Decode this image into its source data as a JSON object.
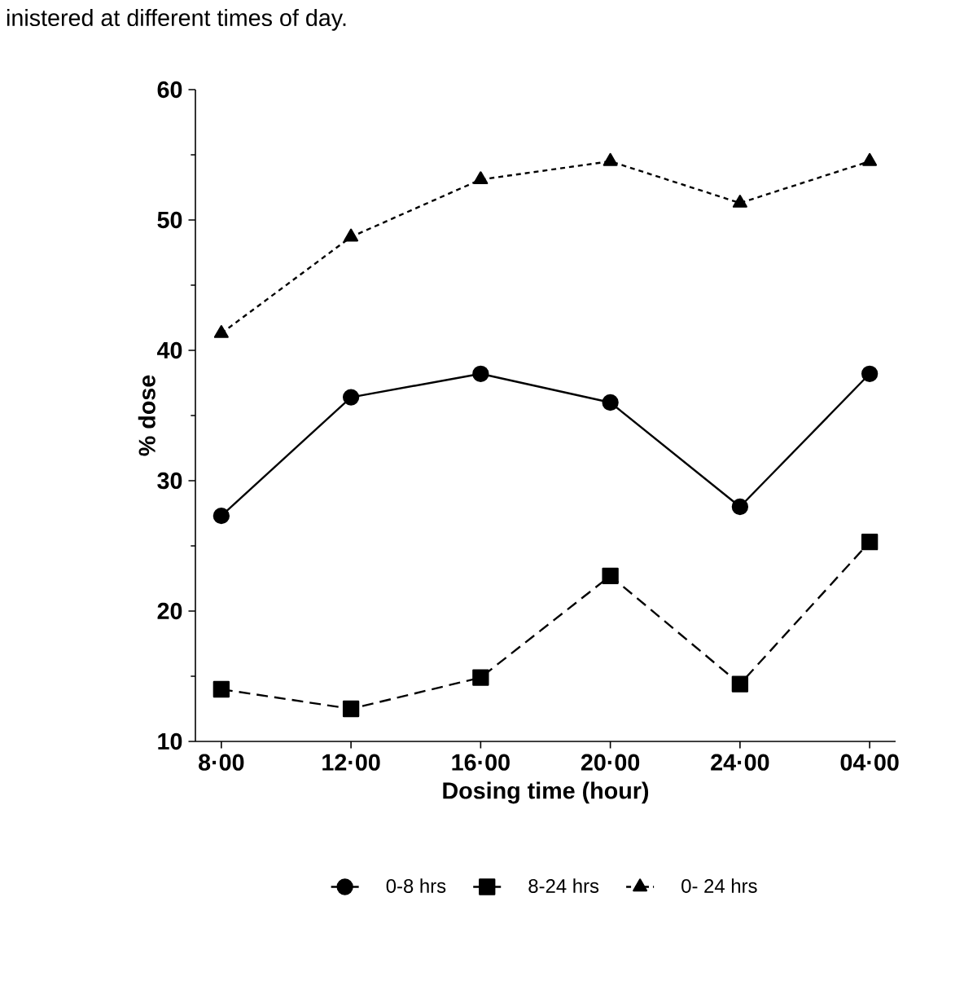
{
  "chart_data": {
    "type": "line",
    "annotations": [
      "inistered at different times of day."
    ],
    "categories": [
      "8·00",
      "12·00",
      "16·00",
      "20·00",
      "24·00",
      "04·00"
    ],
    "xlabel": "Dosing time (hour)",
    "ylabel": "% dose",
    "ylim": [
      10,
      60
    ],
    "yticks": [
      10,
      20,
      30,
      40,
      50,
      60
    ],
    "legend": "bottom",
    "series": [
      {
        "name": "0-8 hrs",
        "color": "#000000",
        "marker": "circle",
        "line_style": "solid",
        "values": [
          27.3,
          36.4,
          38.2,
          36.0,
          28.0,
          38.2
        ]
      },
      {
        "name": "8-24 hrs",
        "color": "#000000",
        "marker": "square",
        "line_style": "dashed",
        "values": [
          14.0,
          12.5,
          14.9,
          22.7,
          14.4,
          25.3
        ]
      },
      {
        "name": "0- 24 hrs",
        "color": "#000000",
        "marker": "triangle",
        "line_style": "dotted",
        "values": [
          41.3,
          48.7,
          53.1,
          54.5,
          51.3,
          54.5
        ]
      }
    ]
  }
}
